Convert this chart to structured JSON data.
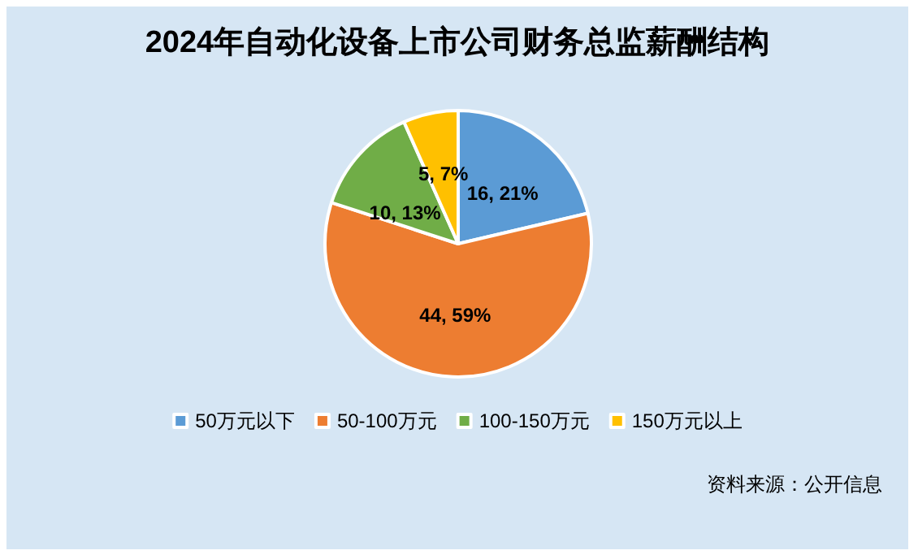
{
  "chart_data": {
    "type": "pie",
    "title": "2024年自动化设备上市公司财务总监薪酬结构",
    "categories": [
      "50万元以下",
      "50-100万元",
      "100-150万元",
      "150万元以上"
    ],
    "values": [
      16,
      44,
      10,
      5
    ],
    "value_labels": [
      "16, 21%",
      "44, 59%",
      "10, 13%",
      "5, 7%"
    ],
    "colors": [
      "#5b9bd5",
      "#ed7d31",
      "#70ad47",
      "#ffc000"
    ],
    "legend": "bottom",
    "annotations": [
      "资料来源：公开信息"
    ]
  }
}
